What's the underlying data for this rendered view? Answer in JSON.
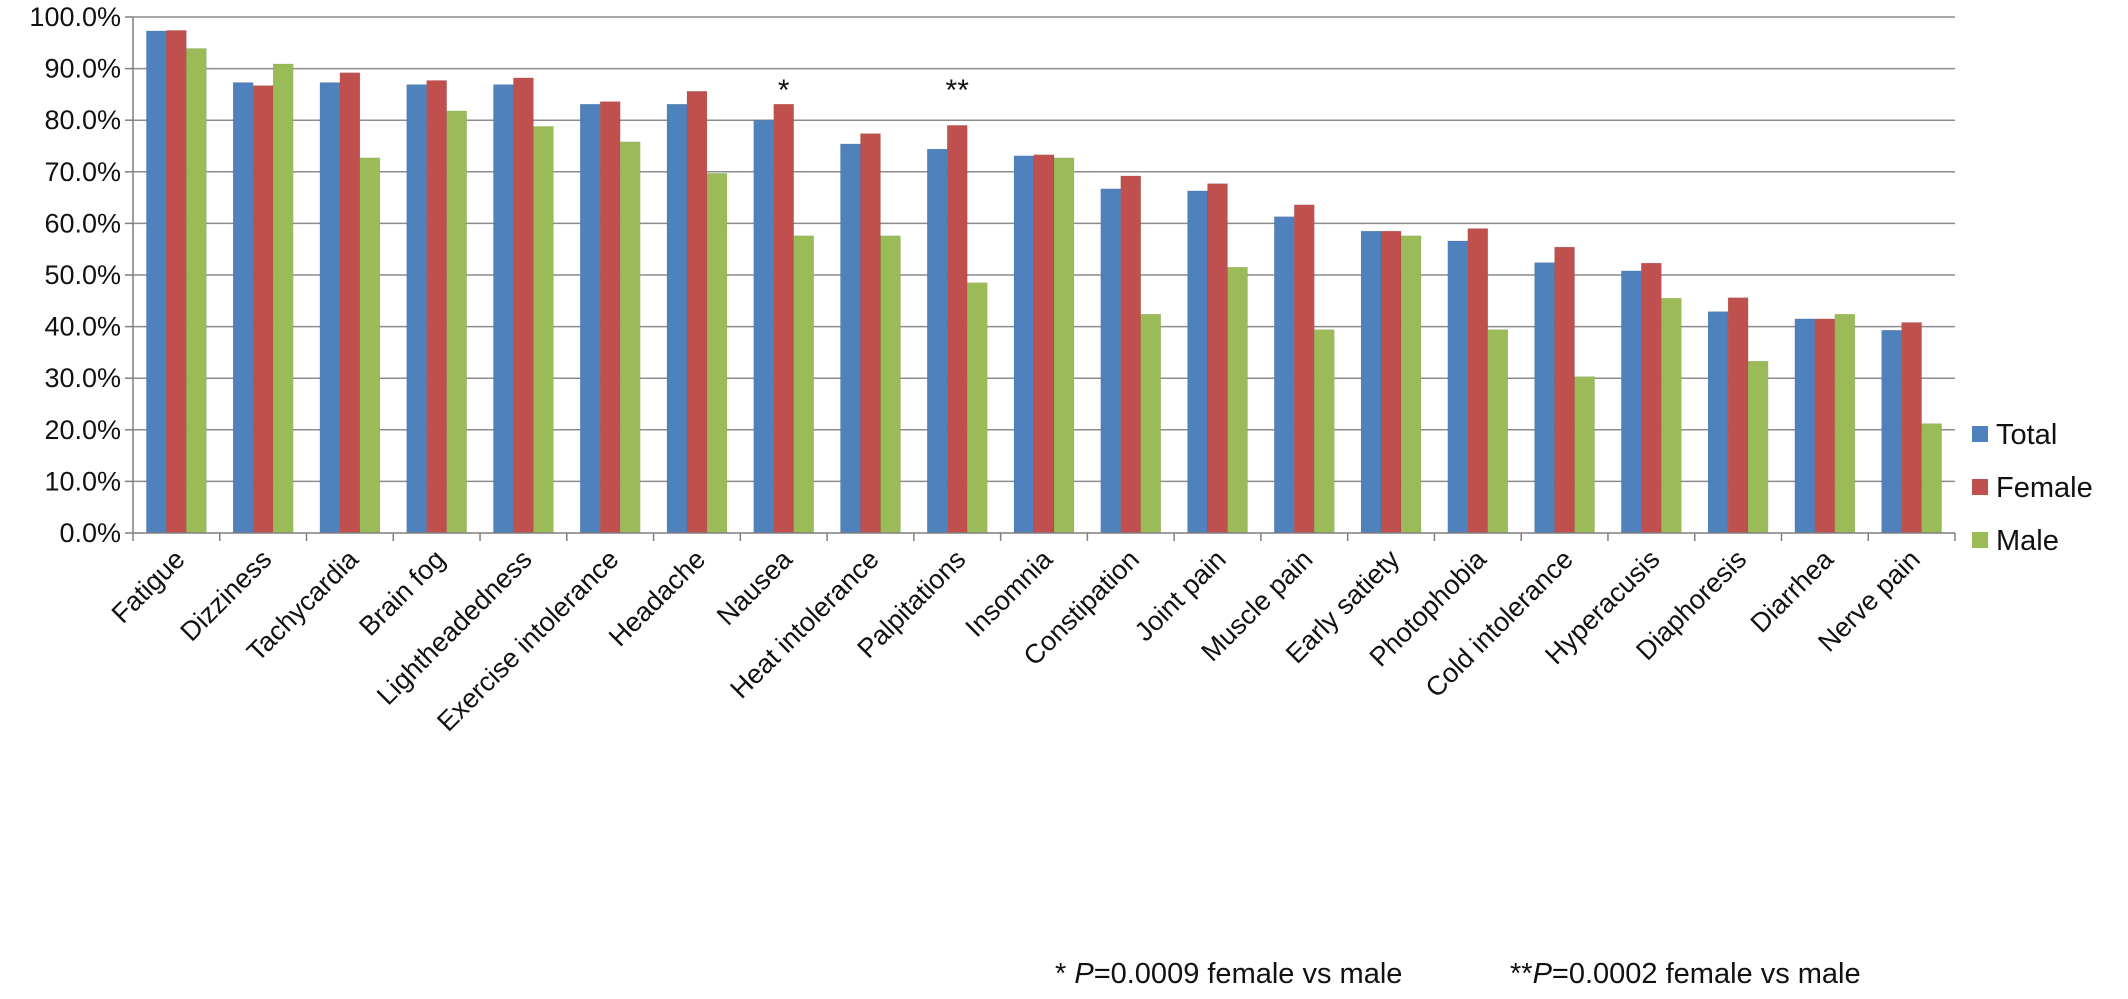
{
  "chart_data": {
    "type": "bar",
    "title": "",
    "xlabel": "",
    "ylabel": "",
    "ylim": [
      0,
      100
    ],
    "yticks": [
      "0.0%",
      "10.0%",
      "20.0%",
      "30.0%",
      "40.0%",
      "50.0%",
      "60.0%",
      "70.0%",
      "80.0%",
      "90.0%",
      "100.0%"
    ],
    "categories": [
      "Fatigue",
      "Dizziness",
      "Tachycardia",
      "Brain fog",
      "Lightheadedness",
      "Exercise intolerance",
      "Headache",
      "Nausea",
      "Heat intolerance",
      "Palpitations",
      "Insomnia",
      "Constipation",
      "Joint pain",
      "Muscle pain",
      "Early satiety",
      "Photophobia",
      "Cold intolerance",
      "Hyperacusis",
      "Diaphoresis",
      "Diarrhea",
      "Nerve pain"
    ],
    "series": [
      {
        "name": "Total",
        "color": "#4f81bd",
        "values": [
          97.3,
          87.3,
          87.3,
          86.9,
          86.9,
          83.1,
          83.1,
          80.0,
          75.4,
          74.4,
          73.1,
          66.7,
          66.3,
          61.3,
          58.5,
          56.6,
          52.4,
          50.8,
          42.9,
          41.5,
          39.3
        ]
      },
      {
        "name": "Female",
        "color": "#c0504d",
        "values": [
          97.4,
          86.7,
          89.2,
          87.7,
          88.2,
          83.6,
          85.6,
          83.1,
          77.4,
          79.0,
          73.3,
          69.2,
          67.7,
          63.6,
          58.5,
          59.0,
          55.4,
          52.3,
          45.6,
          41.5,
          40.8
        ]
      },
      {
        "name": "Male",
        "color": "#9bbb59",
        "values": [
          93.9,
          90.9,
          72.7,
          81.8,
          78.8,
          75.8,
          69.7,
          57.6,
          57.6,
          48.5,
          72.7,
          42.4,
          51.5,
          39.4,
          57.6,
          39.4,
          30.3,
          45.5,
          33.3,
          42.4,
          21.2
        ]
      }
    ],
    "annotations": [
      {
        "category": "Nausea",
        "text": "*"
      },
      {
        "category": "Palpitations",
        "text": "**"
      }
    ],
    "legend_position": "right",
    "grid": true
  },
  "footnotes": {
    "note1_prefix": "* ",
    "note1_p": "P",
    "note1_rest": "=0.0009 female vs  male",
    "note2_prefix": "**",
    "note2_p": "P",
    "note2_rest": "=0.0002 female vs  male"
  }
}
